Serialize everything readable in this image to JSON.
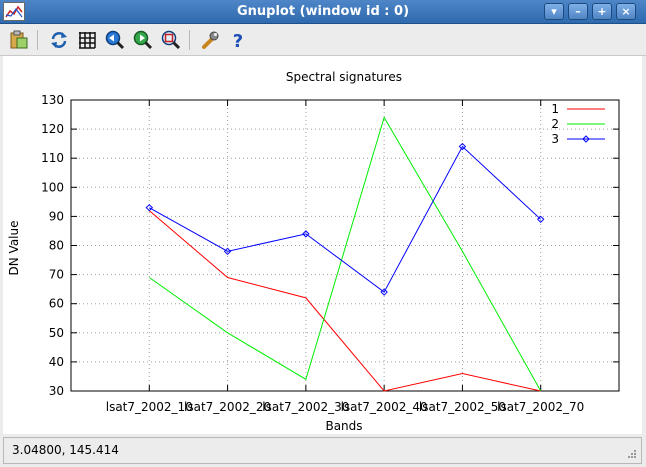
{
  "window": {
    "title": "Gnuplot (window id : 0)"
  },
  "titlebar_buttons": [
    "menu-arrow",
    "minimize",
    "maximize",
    "close"
  ],
  "toolbar": {
    "buttons": [
      "copy-to-clipboard-icon",
      "replot-icon",
      "toggle-grid-icon",
      "previous-zoom-icon",
      "next-zoom-icon",
      "autoscale-icon",
      "configure-icon",
      "help-icon"
    ]
  },
  "status": {
    "text": "3.04800,  145.414"
  },
  "chart_data": {
    "type": "line",
    "title": "Spectral signatures",
    "xlabel": "Bands",
    "ylabel": "DN Value",
    "categories": [
      "lsat7_2002_10",
      "lsat7_2002_20",
      "lsat7_2002_30",
      "lsat7_2002_40",
      "lsat7_2002_50",
      "lsat7_2002_70"
    ],
    "ylim": [
      30,
      130
    ],
    "yticks": [
      "30",
      "40",
      "50",
      "60",
      "70",
      "80",
      "90",
      "100",
      "110",
      "120",
      "130"
    ],
    "grid": true,
    "legend_position": "top-right",
    "series": [
      {
        "name": "1",
        "color": "#ff0000",
        "marker": "none",
        "values": [
          92,
          69,
          62,
          30,
          36,
          30
        ]
      },
      {
        "name": "2",
        "color": "#00ee00",
        "marker": "none",
        "values": [
          69,
          50,
          34,
          124,
          78,
          30
        ]
      },
      {
        "name": "3",
        "color": "#0000ff",
        "marker": "diamond",
        "values": [
          93,
          78,
          84,
          64,
          114,
          89
        ]
      }
    ]
  }
}
